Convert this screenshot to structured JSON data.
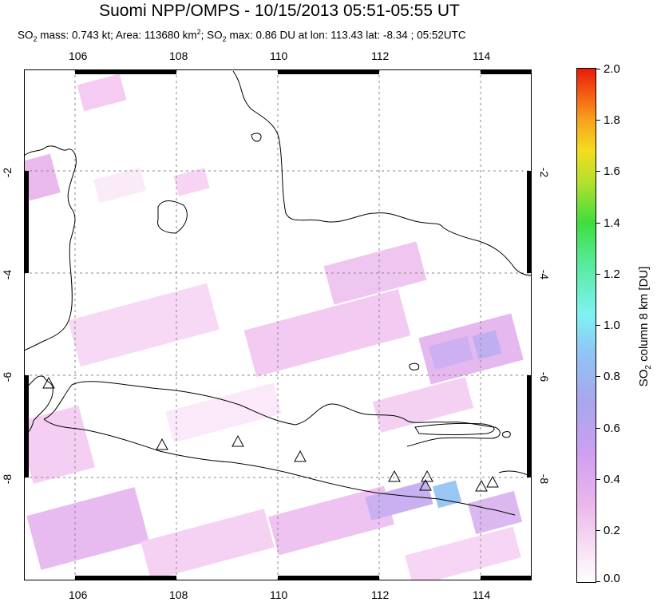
{
  "title": "Suomi NPP/OMPS - 10/15/2013 05:51-05:55 UT",
  "subtitle": {
    "p1": "SO",
    "p1_sub": "2",
    "p2": " mass: 0.743 kt; Area: 113680 km",
    "p2_sup": "2",
    "p3": "; SO",
    "p3_sub": "2",
    "p4": " max: 0.86 DU at lon: 113.43 lat: -8.34 ; 05:52UTC"
  },
  "map": {
    "lon_ticks": [
      "106",
      "108",
      "110",
      "112",
      "114"
    ],
    "lat_ticks_left": [
      "-2",
      "-4",
      "-6",
      "-8"
    ],
    "lat_ticks_right": [
      "-2",
      "-4",
      "-6",
      "-8"
    ],
    "volcano_marker": "triangle-outline"
  },
  "colorbar": {
    "labels": [
      "2.0",
      "1.8",
      "1.6",
      "1.4",
      "1.2",
      "1.0",
      "0.8",
      "0.6",
      "0.4",
      "0.2",
      "0.0"
    ],
    "title_main": "SO",
    "title_sub": "2",
    "title_rest": " column 8 km [DU]",
    "colors": [
      "#ffffff",
      "#ecb7ec",
      "#a8a6ee",
      "#7ff2f4",
      "#3fdd3f",
      "#f3dd20",
      "#f45d14",
      "#e81c0a"
    ]
  }
}
